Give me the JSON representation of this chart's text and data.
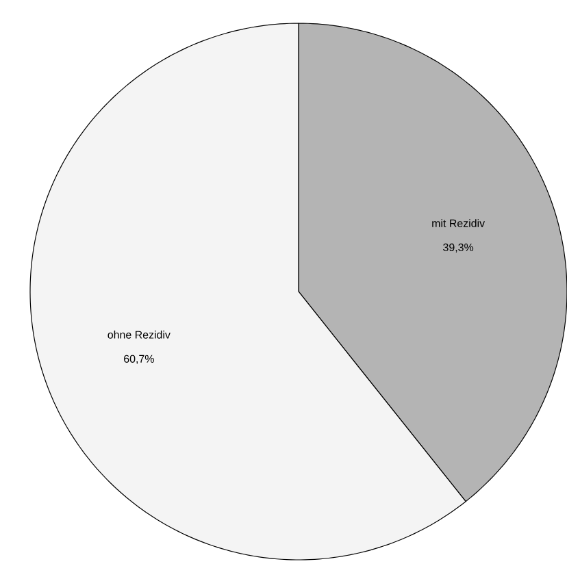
{
  "chart_data": {
    "type": "pie",
    "categories": [
      "mit Rezidiv",
      "ohne Rezidiv"
    ],
    "values": [
      39.3,
      60.7
    ],
    "value_labels": [
      "39,3%",
      "60,7%"
    ],
    "colors": [
      "#b4b4b4",
      "#f4f4f4"
    ]
  }
}
